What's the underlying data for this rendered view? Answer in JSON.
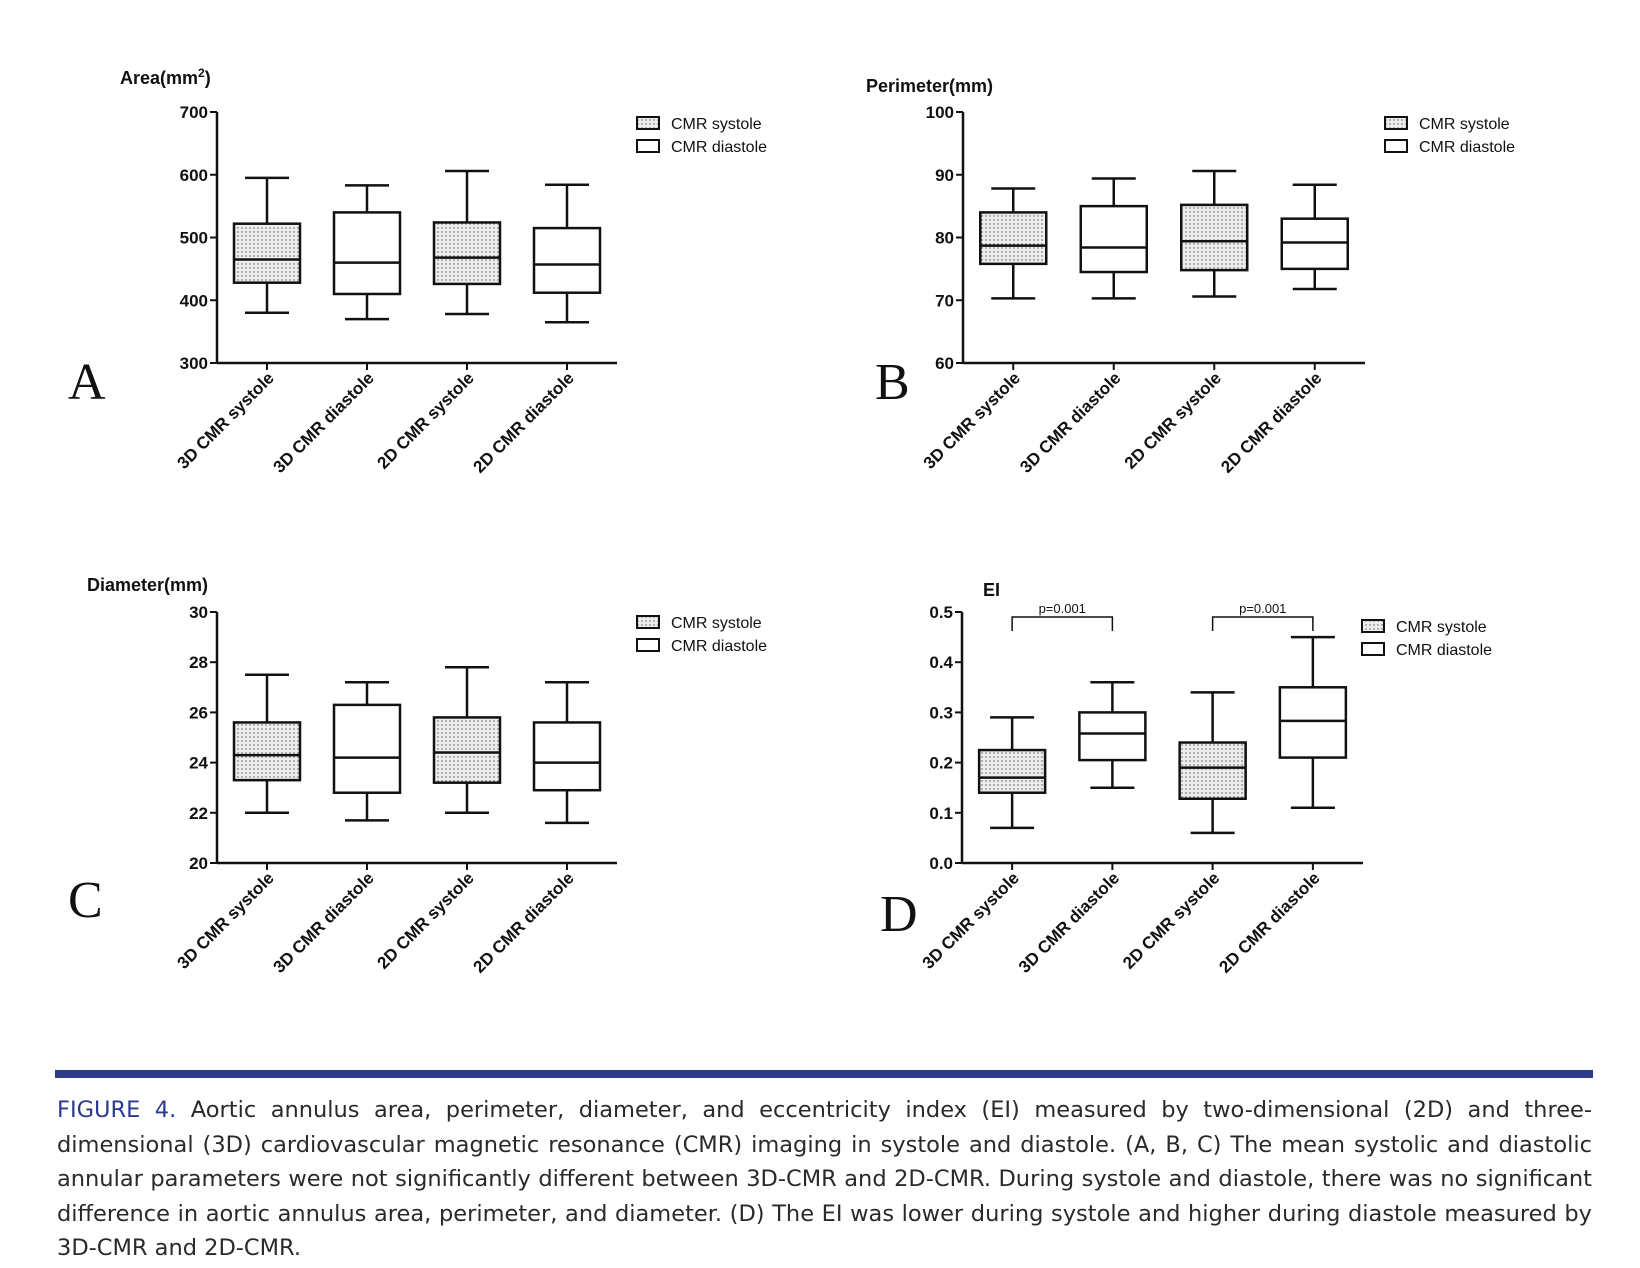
{
  "colors": {
    "accent": "#2b3a8a",
    "ink": "#111111",
    "fill_systole": "#ececec"
  },
  "legend": {
    "systole": "CMR systole",
    "diastole": "CMR diastole"
  },
  "caption": {
    "label": "FIGURE 4.",
    "text": "Aortic annulus area, perimeter, diameter, and eccentricity index (EI) measured by two-dimensional (2D) and three-dimensional (3D) cardiovascular magnetic resonance (CMR) imaging in systole and diastole. (A, B, C) The mean systolic and diastolic annular parameters were not significantly different between 3D-CMR and 2D-CMR. During systole and diastole, there was no significant difference in aortic annulus area, perimeter, and diameter. (D) The EI was lower during systole and higher during diastole measured by 3D-CMR and 2D-CMR."
  },
  "chart_data": [
    {
      "panel": "A",
      "type": "boxplot",
      "ylabel_main": "Area(mm",
      "ylabel_sup": "2",
      "ylabel_tail": ")",
      "ylim": [
        300,
        700
      ],
      "yticks": [
        300,
        400,
        500,
        600,
        700
      ],
      "ytick_labels": [
        "300",
        "400",
        "500",
        "600",
        "700"
      ],
      "categories": [
        "3D CMR systole",
        "3D CMR diastole",
        "2D CMR systole",
        "2D CMR diastole"
      ],
      "groups": [
        "systole",
        "diastole",
        "systole",
        "diastole"
      ],
      "boxes": [
        {
          "min": 380,
          "q1": 428,
          "median": 465,
          "q3": 522,
          "max": 595
        },
        {
          "min": 370,
          "q1": 410,
          "median": 460,
          "q3": 540,
          "max": 583
        },
        {
          "min": 378,
          "q1": 426,
          "median": 468,
          "q3": 524,
          "max": 606
        },
        {
          "min": 365,
          "q1": 412,
          "median": 457,
          "q3": 515,
          "max": 584
        }
      ],
      "brackets": []
    },
    {
      "panel": "B",
      "type": "boxplot",
      "ylabel_main": "Perimeter(mm)",
      "ylabel_sup": "",
      "ylabel_tail": "",
      "ylim": [
        60,
        100
      ],
      "yticks": [
        60,
        70,
        80,
        90,
        100
      ],
      "ytick_labels": [
        "60",
        "70",
        "80",
        "90",
        "100"
      ],
      "categories": [
        "3D CMR systole",
        "3D CMR diastole",
        "2D CMR systole",
        "2D CMR diastole"
      ],
      "groups": [
        "systole",
        "diastole",
        "systole",
        "diastole"
      ],
      "boxes": [
        {
          "min": 70.3,
          "q1": 75.8,
          "median": 78.7,
          "q3": 84.0,
          "max": 87.8
        },
        {
          "min": 70.3,
          "q1": 74.5,
          "median": 78.4,
          "q3": 85.0,
          "max": 89.4
        },
        {
          "min": 70.6,
          "q1": 74.8,
          "median": 79.4,
          "q3": 85.2,
          "max": 90.6
        },
        {
          "min": 71.8,
          "q1": 75.0,
          "median": 79.2,
          "q3": 83.0,
          "max": 88.4
        }
      ],
      "brackets": []
    },
    {
      "panel": "C",
      "type": "boxplot",
      "ylabel_main": "Diameter(mm)",
      "ylabel_sup": "",
      "ylabel_tail": "",
      "ylim": [
        20,
        30
      ],
      "yticks": [
        20,
        22,
        24,
        26,
        28,
        30
      ],
      "ytick_labels": [
        "20",
        "22",
        "24",
        "26",
        "28",
        "30"
      ],
      "categories": [
        "3D CMR systole",
        "3D CMR diastole",
        "2D CMR systole",
        "2D CMR diastole"
      ],
      "groups": [
        "systole",
        "diastole",
        "systole",
        "diastole"
      ],
      "boxes": [
        {
          "min": 22.0,
          "q1": 23.3,
          "median": 24.3,
          "q3": 25.6,
          "max": 27.5
        },
        {
          "min": 21.7,
          "q1": 22.8,
          "median": 24.2,
          "q3": 26.3,
          "max": 27.2
        },
        {
          "min": 22.0,
          "q1": 23.2,
          "median": 24.4,
          "q3": 25.8,
          "max": 27.8
        },
        {
          "min": 21.6,
          "q1": 22.9,
          "median": 24.0,
          "q3": 25.6,
          "max": 27.2
        }
      ],
      "brackets": []
    },
    {
      "panel": "D",
      "type": "boxplot",
      "ylabel_main": "EI",
      "ylabel_sup": "",
      "ylabel_tail": "",
      "ylim": [
        0,
        0.5
      ],
      "yticks": [
        0,
        0.1,
        0.2,
        0.3,
        0.4,
        0.5
      ],
      "ytick_labels": [
        "0.0",
        "0.1",
        "0.2",
        "0.3",
        "0.4",
        "0.5"
      ],
      "categories": [
        "3D CMR systole",
        "3D CMR diastole",
        "2D CMR systole",
        "2D CMR diastole"
      ],
      "groups": [
        "systole",
        "diastole",
        "systole",
        "diastole"
      ],
      "boxes": [
        {
          "min": 0.07,
          "q1": 0.14,
          "median": 0.17,
          "q3": 0.225,
          "max": 0.29
        },
        {
          "min": 0.15,
          "q1": 0.205,
          "median": 0.258,
          "q3": 0.3,
          "max": 0.36
        },
        {
          "min": 0.06,
          "q1": 0.128,
          "median": 0.19,
          "q3": 0.24,
          "max": 0.34
        },
        {
          "min": 0.11,
          "q1": 0.21,
          "median": 0.283,
          "q3": 0.35,
          "max": 0.45
        }
      ],
      "brackets": [
        {
          "from": 0,
          "to": 1,
          "label": "p=0.001"
        },
        {
          "from": 2,
          "to": 3,
          "label": "p=0.001"
        }
      ]
    }
  ]
}
